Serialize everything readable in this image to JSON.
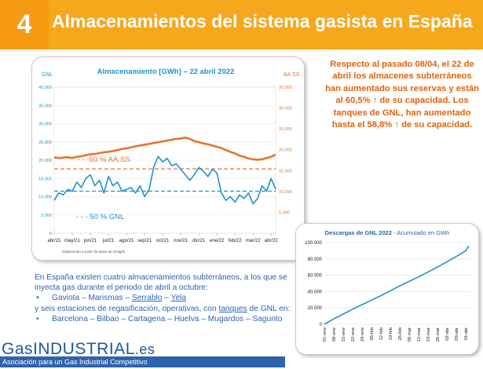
{
  "header": {
    "number": "4",
    "title": "Almacenamientos del sistema gasista en España"
  },
  "storage_chart": {
    "title": "Almacenamiento [GWh] – 22 abril 2022",
    "left_axis_label": "GNL",
    "right_axis_label": "AA.SS",
    "source": "Elaboración a partir de datos de Enagás",
    "ref_label_aass": "- - -50 % AA.SS.",
    "ref_label_gnl": "- - - 50 % GNL"
  },
  "note": {
    "text1": "Respecto al pasado 08/04, el 22 de abril los almacenes subterráneos han aumentado sus reservas y están al 60,5%",
    "text2": "de su capacidad. Los tanques de GNL, han aumentado hasta el 58,8%",
    "text3": "de su capacidad.",
    "arrow": "↑"
  },
  "discharge_chart": {
    "title_main": "Descargas de GNL 2022",
    "title_sub": " - Acumulado en GWh"
  },
  "description": {
    "intro": "En España existen cuatro almacenamientos subterráneos, a los que se inyecta gas durante el periodo de abril a octubre:",
    "storages": [
      "Gaviota",
      "Marismas",
      "Serrablo",
      "Yela"
    ],
    "sep": " – ",
    "mid_a": "y seis estaciones de regasificación, operativas, con ",
    "mid_b": "tanques",
    "mid_c": " de GNL en:",
    "plants": "Barcelona – Bilbao – Cartagena – Huelva – Mugardos – Sagunto"
  },
  "footer": {
    "logo_a": "Gas",
    "logo_b": "INDUSTRIAL",
    "logo_c": ".es",
    "tagline": "Asociación para un Gas Industrial Competitivo"
  },
  "colors": {
    "gnl": "#1f92d0",
    "aass": "#e6742a",
    "accent": "#f5a81c",
    "text_blue": "#2f63ac"
  },
  "chart_data": [
    {
      "type": "line",
      "title": "Almacenamiento [GWh] – 22 abril 2022",
      "x_ticks": [
        "abr/21",
        "may/21",
        "jun/21",
        "jul/21",
        "ago/21",
        "sep/21",
        "oct/21",
        "nov/21",
        "dic/21",
        "ene/22",
        "feb/22",
        "mar/22",
        "abr/22"
      ],
      "y_left": {
        "label": "GNL",
        "range": [
          0,
          40000
        ],
        "ticks": [
          "0",
          "5.000",
          "10.000",
          "15.000",
          "20.000",
          "25.000",
          "30.000",
          "35.000",
          "40.000"
        ]
      },
      "y_right": {
        "label": "AA.SS",
        "range": [
          0,
          35000
        ],
        "ticks": [
          "5.000",
          "10.000",
          "15.000",
          "20.000",
          "25.000",
          "30.000",
          "35.000"
        ]
      },
      "x": [
        0,
        0.25,
        0.5,
        0.75,
        1,
        1.25,
        1.5,
        1.75,
        2,
        2.25,
        2.5,
        2.75,
        3,
        3.25,
        3.5,
        3.75,
        4,
        4.25,
        4.5,
        4.75,
        5,
        5.25,
        5.5,
        5.75,
        6,
        6.25,
        6.5,
        6.75,
        7,
        7.25,
        7.5,
        7.75,
        8,
        8.25,
        8.5,
        8.75,
        9,
        9.25,
        9.5,
        9.75,
        10,
        10.25,
        10.5,
        10.75,
        11,
        11.25,
        11.5,
        11.75,
        12,
        12.25
      ],
      "series": [
        {
          "name": "AA.SS",
          "axis": "right",
          "values": [
            18200,
            18000,
            18100,
            18200,
            18000,
            18300,
            18400,
            18700,
            18900,
            19000,
            19200,
            19400,
            19500,
            19700,
            19900,
            20200,
            20300,
            20600,
            20800,
            21000,
            21200,
            21400,
            21600,
            21800,
            22000,
            22200,
            22400,
            22600,
            22700,
            22900,
            22600,
            22100,
            21800,
            21500,
            21300,
            21000,
            20700,
            20400,
            19900,
            19500,
            19100,
            18600,
            18300,
            17900,
            17700,
            17600,
            17700,
            18000,
            18300,
            18800
          ]
        },
        {
          "name": "GNL",
          "axis": "left",
          "values": [
            9000,
            11000,
            10500,
            12000,
            11500,
            14000,
            12500,
            15000,
            16000,
            13000,
            14500,
            11000,
            15500,
            13000,
            14000,
            11500,
            12000,
            12500,
            11000,
            13000,
            10000,
            12000,
            18000,
            21000,
            19500,
            20500,
            18500,
            19000,
            17500,
            16000,
            14500,
            16000,
            18000,
            17000,
            15500,
            17500,
            16500,
            11000,
            9000,
            10000,
            8500,
            10500,
            9500,
            11000,
            8000,
            9500,
            13000,
            11500,
            15000,
            12000
          ]
        }
      ],
      "reference_lines": [
        {
          "label": "-50 % AA.SS.",
          "axis": "right",
          "value": 15400
        },
        {
          "label": "50 % GNL",
          "axis": "left",
          "value": 11500
        }
      ]
    },
    {
      "type": "line",
      "title": "Descargas de GNL 2022",
      "subtitle": "Acumulado en GWh",
      "categories": [
        "01-ene",
        "08-ene",
        "15-ene",
        "22-ene",
        "29-ene",
        "05-feb",
        "12-feb",
        "19-feb",
        "26-feb",
        "05-mar",
        "12-mar",
        "19-mar",
        "26-mar",
        "02-abr",
        "09-abr",
        "16-abr"
      ],
      "values": [
        0,
        6500,
        12500,
        18500,
        24000,
        29500,
        35000,
        41000,
        47000,
        52500,
        58000,
        64000,
        70000,
        76500,
        83000,
        90000
      ],
      "end_value": 96000,
      "y_range": [
        0,
        100000
      ],
      "y_ticks": [
        "0",
        "20.000",
        "40.000",
        "60.000",
        "80.000",
        "100.000"
      ]
    }
  ]
}
